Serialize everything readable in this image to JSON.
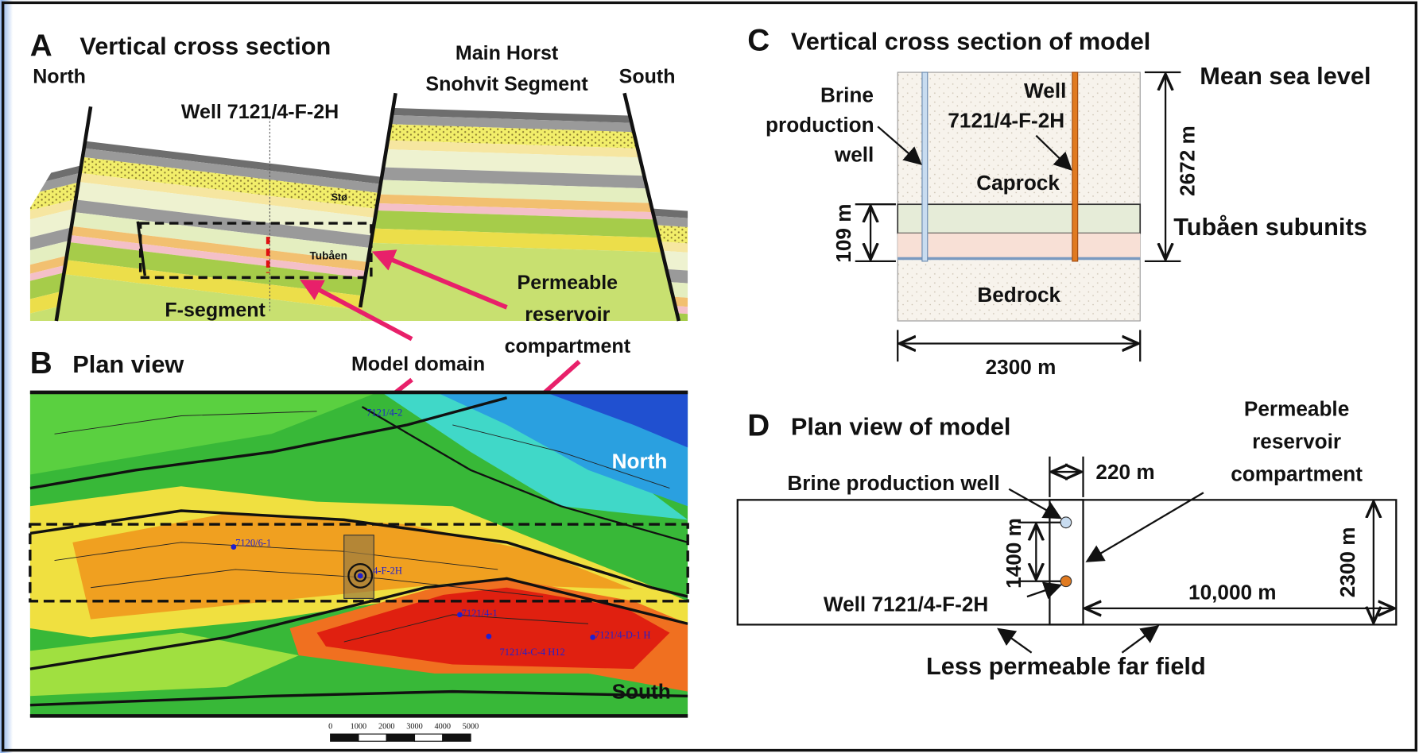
{
  "panel_a": {
    "label": "A",
    "title": "Vertical cross section",
    "north": "North",
    "horst": [
      "Main Horst",
      "Snohvit Segment"
    ],
    "south": "South",
    "well": "Well 7121/4-F-2H",
    "unit_upper": "Stø",
    "unit_lower": "Tubåen",
    "segment": "F-segment"
  },
  "callouts": {
    "compartment": [
      "Permeable",
      "reservoir",
      "compartment"
    ],
    "model_domain": "Model domain"
  },
  "panel_b": {
    "label": "B",
    "title": "Plan view",
    "north": "North",
    "south": "South",
    "wells": [
      "7121/4-2",
      "7120/6-1",
      "4-F-2H",
      "7121/4-1",
      "7121/4-C-4 H12",
      "7121/4-D-1 H"
    ],
    "scale_bar": [
      "0",
      "1000",
      "2000",
      "3000",
      "4000",
      "5000"
    ]
  },
  "panel_c": {
    "label": "C",
    "title": "Vertical cross section of model",
    "brine_well": [
      "Brine",
      "production",
      "well"
    ],
    "well": [
      "Well",
      "7121/4-F-2H"
    ],
    "caprock": "Caprock",
    "sea_level": "Mean sea level",
    "depth": "2672 m",
    "thickness": "109 m",
    "subunits": "Tubåen subunits",
    "bedrock": "Bedrock",
    "width": "2300 m"
  },
  "panel_d": {
    "label": "D",
    "title": "Plan view of model",
    "compartment": [
      "Permeable",
      "reservoir",
      "compartment"
    ],
    "compartment_width": "220 m",
    "brine_well": "Brine production well",
    "spacing": "1400 m",
    "width": "2300 m",
    "well": "Well 7121/4-F-2H",
    "length": "10,000 m",
    "far_field": "Less permeable far field"
  }
}
